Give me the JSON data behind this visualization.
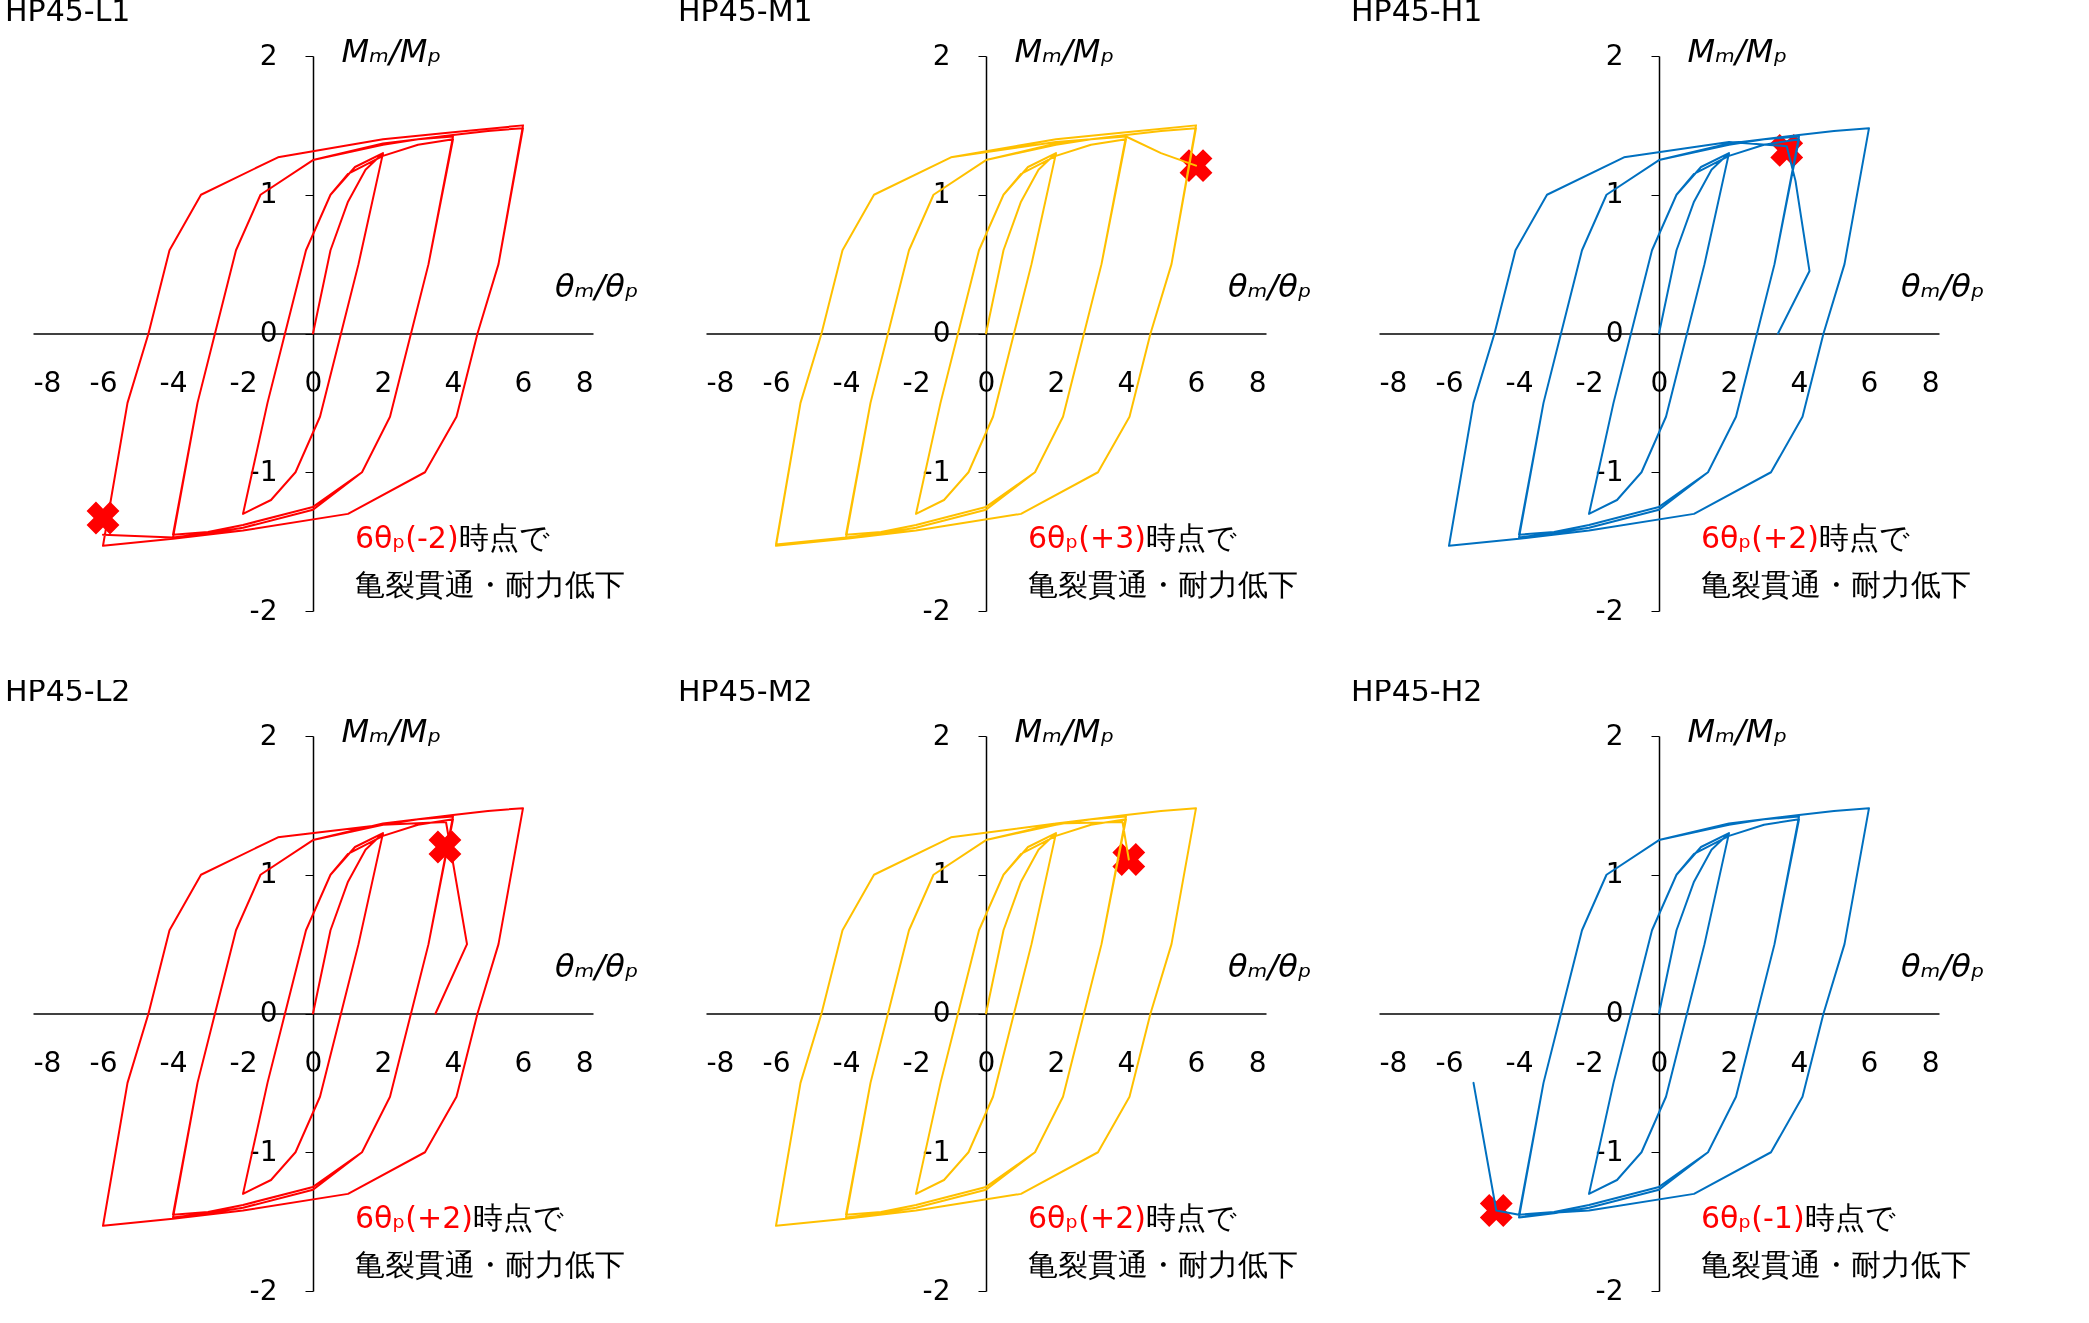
{
  "chart_data": [
    {
      "type": "line",
      "title": "HP45-L1",
      "xlabel": "θₘ/θₚ",
      "ylabel": "Mₘ/Mₚ",
      "xlim": [
        -8,
        8
      ],
      "ylim": [
        -2,
        2
      ],
      "xticks": [
        -8,
        -6,
        -4,
        -2,
        0,
        2,
        4,
        6,
        8
      ],
      "yticks": [
        -2,
        -1,
        0,
        1,
        2
      ],
      "annotations": [
        "6θₚ(-2)",
        "時点で",
        "亀裂貫通・耐力低下"
      ],
      "series": [
        {
          "color": "#ff0000",
          "x": [
            0,
            0.5,
            1,
            1.5,
            2,
            1.3,
            0.8,
            0.2,
            -0.5,
            -1.2,
            -2,
            -1.3,
            -0.8,
            -0.2,
            0.5,
            1.2,
            2,
            1.3,
            0.8,
            0.2,
            -0.5,
            -1.2,
            -2,
            -1.3,
            -0.8,
            -0.2,
            0.5,
            1,
            2,
            3,
            4,
            3.3,
            2.8,
            2.2,
            1.4,
            0,
            -2,
            -3,
            -4,
            -3.3,
            -2.8,
            -2.2,
            -1.5,
            0,
            2,
            3,
            4,
            3.3,
            2.8,
            2.2,
            1.4,
            0,
            -2,
            -3,
            -4,
            -3.3,
            -2.8,
            -2.2,
            -1.5,
            0,
            2,
            4,
            5,
            6,
            5.3,
            4.7,
            4.1,
            3.2,
            1,
            -2,
            -4,
            -6,
            -5.3,
            -4.7,
            -4.1,
            -3.2,
            -1,
            2,
            4,
            6,
            5.3,
            4.7,
            4.1,
            3.2,
            1,
            -2,
            -4,
            -6
          ],
          "values": [
            0,
            0.6,
            0.95,
            1.18,
            1.3,
            0.5,
            0,
            -0.6,
            -1,
            -1.2,
            -1.3,
            -0.5,
            0,
            0.6,
            1,
            1.2,
            1.3,
            0.5,
            0,
            -0.6,
            -1,
            -1.2,
            -1.3,
            -0.5,
            0,
            0.6,
            1,
            1.15,
            1.28,
            1.36,
            1.4,
            0.5,
            0,
            -0.6,
            -1,
            -1.25,
            -1.38,
            -1.43,
            -1.45,
            -0.5,
            0,
            0.6,
            1,
            1.25,
            1.36,
            1.4,
            1.42,
            0.5,
            0,
            -0.6,
            -1,
            -1.27,
            -1.4,
            -1.44,
            -1.47,
            -0.5,
            0,
            0.6,
            1,
            1.25,
            1.37,
            1.43,
            1.46,
            1.48,
            0.5,
            0,
            -0.6,
            -1,
            -1.3,
            -1.42,
            -1.48,
            -1.53,
            -0.5,
            0,
            0.6,
            1,
            1.27,
            1.4,
            1.45,
            1.5,
            0.5,
            0,
            -0.6,
            -1,
            -1.3,
            -1.42,
            -1.47,
            -1.45
          ]
        },
        {
          "type": "scatter",
          "marker": "cross",
          "color": "#ff0000",
          "x": [
            -6
          ],
          "values": [
            -1.33
          ]
        }
      ]
    },
    {
      "type": "line",
      "title": "HP45-M1",
      "xlabel": "θₘ/θₚ",
      "ylabel": "Mₘ/Mₚ",
      "xlim": [
        -8,
        8
      ],
      "ylim": [
        -2,
        2
      ],
      "xticks": [
        -8,
        -6,
        -4,
        -2,
        0,
        2,
        4,
        6,
        8
      ],
      "yticks": [
        -2,
        -1,
        0,
        1,
        2
      ],
      "annotations": [
        "6θₚ(+3)",
        "時点で",
        "亀裂貫通・耐力低下"
      ],
      "series": [
        {
          "color": "#ffc000",
          "x": [
            0,
            0.5,
            1,
            1.5,
            2,
            1.3,
            0.8,
            0.2,
            -0.5,
            -1.2,
            -2,
            -1.3,
            -0.8,
            -0.2,
            0.5,
            1.2,
            2,
            1.3,
            0.8,
            0.2,
            -0.5,
            -1.2,
            -2,
            -1.3,
            -0.8,
            -0.2,
            0.5,
            1,
            2,
            3,
            4,
            3.3,
            2.8,
            2.2,
            1.4,
            0,
            -2,
            -3,
            -4,
            -3.3,
            -2.8,
            -2.2,
            -1.5,
            0,
            2,
            3,
            4,
            3.3,
            2.8,
            2.2,
            1.4,
            0,
            -2,
            -3,
            -4,
            -3.3,
            -2.8,
            -2.2,
            -1.5,
            0,
            2,
            4,
            5,
            6,
            5.3,
            4.7,
            4.1,
            3.2,
            1,
            -2,
            -4,
            -6,
            -5.3,
            -4.7,
            -4.1,
            -3.2,
            -1,
            2,
            4,
            6,
            5.3,
            4.7,
            4.1,
            3.2,
            1,
            -2,
            -4,
            -6,
            -5.3,
            -4.7,
            -4.1,
            -3.2,
            -1,
            2,
            4,
            5,
            6
          ],
          "values": [
            0,
            0.6,
            0.95,
            1.18,
            1.3,
            0.5,
            0,
            -0.6,
            -1,
            -1.2,
            -1.3,
            -0.5,
            0,
            0.6,
            1,
            1.2,
            1.3,
            0.5,
            0,
            -0.6,
            -1,
            -1.2,
            -1.3,
            -0.5,
            0,
            0.6,
            1,
            1.15,
            1.28,
            1.36,
            1.4,
            0.5,
            0,
            -0.6,
            -1,
            -1.25,
            -1.38,
            -1.43,
            -1.45,
            -0.5,
            0,
            0.6,
            1,
            1.25,
            1.36,
            1.4,
            1.42,
            0.5,
            0,
            -0.6,
            -1,
            -1.27,
            -1.4,
            -1.44,
            -1.47,
            -0.5,
            0,
            0.6,
            1,
            1.25,
            1.37,
            1.43,
            1.46,
            1.48,
            0.5,
            0,
            -0.6,
            -1,
            -1.3,
            -1.42,
            -1.48,
            -1.53,
            -0.5,
            0,
            0.6,
            1,
            1.27,
            1.4,
            1.45,
            1.5,
            0.5,
            0,
            -0.6,
            -1,
            -1.3,
            -1.42,
            -1.47,
            -1.52,
            -0.5,
            0,
            0.6,
            1,
            1.27,
            1.38,
            1.42,
            1.3,
            1.21
          ]
        },
        {
          "type": "scatter",
          "marker": "cross",
          "color": "#ff0000",
          "x": [
            6
          ],
          "values": [
            1.21
          ]
        }
      ]
    },
    {
      "type": "line",
      "title": "HP45-H1",
      "xlabel": "θₘ/θₚ",
      "ylabel": "Mₘ/Mₚ",
      "xlim": [
        -8,
        8
      ],
      "ylim": [
        -2,
        2
      ],
      "xticks": [
        -8,
        -6,
        -4,
        -2,
        0,
        2,
        4,
        6,
        8
      ],
      "yticks": [
        -2,
        -1,
        0,
        1,
        2
      ],
      "annotations": [
        "6θₚ(+2)",
        "時点で",
        "亀裂貫通・耐力低下"
      ],
      "series": [
        {
          "color": "#0070c0",
          "x": [
            0,
            0.5,
            1,
            1.5,
            2,
            1.3,
            0.8,
            0.2,
            -0.5,
            -1.2,
            -2,
            -1.3,
            -0.8,
            -0.2,
            0.5,
            1.2,
            2,
            1.3,
            0.8,
            0.2,
            -0.5,
            -1.2,
            -2,
            -1.3,
            -0.8,
            -0.2,
            0.5,
            1,
            2,
            3,
            4,
            3.3,
            2.8,
            2.2,
            1.4,
            0,
            -2,
            -3,
            -4,
            -3.3,
            -2.8,
            -2.2,
            -1.5,
            0,
            2,
            3,
            4,
            3.3,
            2.8,
            2.2,
            1.4,
            0,
            -2,
            -3,
            -4,
            -3.3,
            -2.8,
            -2.2,
            -1.5,
            0,
            2,
            4,
            5,
            6,
            5.3,
            4.7,
            4.1,
            3.2,
            1,
            -2,
            -4,
            -6,
            -5.3,
            -4.7,
            -4.1,
            -3.2,
            -1,
            2,
            3.65,
            3.9,
            4.3,
            3.4
          ],
          "values": [
            0,
            0.6,
            0.95,
            1.18,
            1.3,
            0.5,
            0,
            -0.6,
            -1,
            -1.2,
            -1.3,
            -0.5,
            0,
            0.6,
            1,
            1.2,
            1.3,
            0.5,
            0,
            -0.6,
            -1,
            -1.2,
            -1.3,
            -0.5,
            0,
            0.6,
            1,
            1.15,
            1.28,
            1.36,
            1.4,
            0.5,
            0,
            -0.6,
            -1,
            -1.25,
            -1.38,
            -1.43,
            -1.45,
            -0.5,
            0,
            0.6,
            1,
            1.25,
            1.36,
            1.4,
            1.42,
            0.5,
            0,
            -0.6,
            -1,
            -1.27,
            -1.4,
            -1.44,
            -1.47,
            -0.5,
            0,
            0.6,
            1,
            1.25,
            1.37,
            1.43,
            1.46,
            1.48,
            0.5,
            0,
            -0.6,
            -1,
            -1.3,
            -1.42,
            -1.48,
            -1.53,
            -0.5,
            0,
            0.6,
            1,
            1.27,
            1.38,
            1.35,
            1.1,
            0.45,
            0
          ]
        },
        {
          "type": "scatter",
          "marker": "cross",
          "color": "#ff0000",
          "x": [
            3.65
          ],
          "values": [
            1.32
          ]
        }
      ]
    },
    {
      "type": "line",
      "title": "HP45-L2",
      "xlabel": "θₘ/θₚ",
      "ylabel": "Mₘ/Mₚ",
      "xlim": [
        -8,
        8
      ],
      "ylim": [
        -2,
        2
      ],
      "xticks": [
        -8,
        -6,
        -4,
        -2,
        0,
        2,
        4,
        6,
        8
      ],
      "yticks": [
        -2,
        -1,
        0,
        1,
        2
      ],
      "annotations": [
        "6θₚ(+2)",
        "時点で",
        "亀裂貫通・耐力低下"
      ],
      "series": [
        {
          "color": "#ff0000",
          "x": [
            0,
            0.5,
            1,
            1.5,
            2,
            1.3,
            0.8,
            0.2,
            -0.5,
            -1.2,
            -2,
            -1.3,
            -0.8,
            -0.2,
            0.5,
            1.2,
            2,
            1.3,
            0.8,
            0.2,
            -0.5,
            -1.2,
            -2,
            -1.3,
            -0.8,
            -0.2,
            0.5,
            1,
            2,
            3,
            4,
            3.3,
            2.8,
            2.2,
            1.4,
            0,
            -2,
            -3,
            -4,
            -3.3,
            -2.8,
            -2.2,
            -1.5,
            0,
            2,
            3,
            4,
            3.3,
            2.8,
            2.2,
            1.4,
            0,
            -2,
            -3,
            -4,
            -3.3,
            -2.8,
            -2.2,
            -1.5,
            0,
            2,
            4,
            5,
            6,
            5.3,
            4.7,
            4.1,
            3.2,
            1,
            -2,
            -4,
            -6,
            -5.3,
            -4.7,
            -4.1,
            -3.2,
            -1,
            2,
            3.8,
            4.4,
            3.5
          ],
          "values": [
            0,
            0.6,
            0.95,
            1.18,
            1.3,
            0.5,
            0,
            -0.6,
            -1,
            -1.2,
            -1.3,
            -0.5,
            0,
            0.6,
            1,
            1.2,
            1.3,
            0.5,
            0,
            -0.6,
            -1,
            -1.2,
            -1.3,
            -0.5,
            0,
            0.6,
            1,
            1.15,
            1.28,
            1.36,
            1.4,
            0.5,
            0,
            -0.6,
            -1,
            -1.25,
            -1.38,
            -1.43,
            -1.45,
            -0.5,
            0,
            0.6,
            1,
            1.25,
            1.36,
            1.4,
            1.42,
            0.5,
            0,
            -0.6,
            -1,
            -1.27,
            -1.4,
            -1.44,
            -1.47,
            -0.5,
            0,
            0.6,
            1,
            1.25,
            1.37,
            1.43,
            1.46,
            1.48,
            0.5,
            0,
            -0.6,
            -1,
            -1.3,
            -1.42,
            -1.48,
            -1.53,
            -0.5,
            0,
            0.6,
            1,
            1.27,
            1.36,
            1.38,
            0.5,
            0
          ]
        },
        {
          "type": "scatter",
          "marker": "cross",
          "color": "#ff0000",
          "x": [
            3.77
          ],
          "values": [
            1.2
          ]
        }
      ]
    },
    {
      "type": "line",
      "title": "HP45-M2",
      "xlabel": "θₘ/θₚ",
      "ylabel": "Mₘ/Mₚ",
      "xlim": [
        -8,
        8
      ],
      "ylim": [
        -2,
        2
      ],
      "xticks": [
        -8,
        -6,
        -4,
        -2,
        0,
        2,
        4,
        6,
        8
      ],
      "yticks": [
        -2,
        -1,
        0,
        1,
        2
      ],
      "annotations": [
        "6θₚ(+2)",
        "時点で",
        "亀裂貫通・耐力低下"
      ],
      "series": [
        {
          "color": "#ffc000",
          "x": [
            0,
            0.5,
            1,
            1.5,
            2,
            1.3,
            0.8,
            0.2,
            -0.5,
            -1.2,
            -2,
            -1.3,
            -0.8,
            -0.2,
            0.5,
            1.2,
            2,
            1.3,
            0.8,
            0.2,
            -0.5,
            -1.2,
            -2,
            -1.3,
            -0.8,
            -0.2,
            0.5,
            1,
            2,
            3,
            4,
            3.3,
            2.8,
            2.2,
            1.4,
            0,
            -2,
            -3,
            -4,
            -3.3,
            -2.8,
            -2.2,
            -1.5,
            0,
            2,
            3,
            4,
            3.3,
            2.8,
            2.2,
            1.4,
            0,
            -2,
            -3,
            -4,
            -3.3,
            -2.8,
            -2.2,
            -1.5,
            0,
            2,
            4,
            5,
            6,
            5.3,
            4.7,
            4.1,
            3.2,
            1,
            -2,
            -4,
            -6,
            -5.3,
            -4.7,
            -4.1,
            -3.2,
            -1,
            2,
            3.9,
            4.08
          ],
          "values": [
            0,
            0.6,
            0.95,
            1.18,
            1.3,
            0.5,
            0,
            -0.6,
            -1,
            -1.2,
            -1.3,
            -0.5,
            0,
            0.6,
            1,
            1.2,
            1.3,
            0.5,
            0,
            -0.6,
            -1,
            -1.2,
            -1.3,
            -0.5,
            0,
            0.6,
            1,
            1.15,
            1.28,
            1.36,
            1.4,
            0.5,
            0,
            -0.6,
            -1,
            -1.25,
            -1.38,
            -1.43,
            -1.45,
            -0.5,
            0,
            0.6,
            1,
            1.25,
            1.36,
            1.4,
            1.42,
            0.5,
            0,
            -0.6,
            -1,
            -1.27,
            -1.4,
            -1.44,
            -1.47,
            -0.5,
            0,
            0.6,
            1,
            1.25,
            1.37,
            1.43,
            1.46,
            1.48,
            0.5,
            0,
            -0.6,
            -1,
            -1.3,
            -1.42,
            -1.48,
            -1.53,
            -0.5,
            0,
            0.6,
            1,
            1.27,
            1.37,
            1.38,
            1.11
          ]
        },
        {
          "type": "scatter",
          "marker": "cross",
          "color": "#ff0000",
          "x": [
            4.08
          ],
          "values": [
            1.11
          ]
        }
      ]
    },
    {
      "type": "line",
      "title": "HP45-H2",
      "xlabel": "θₘ/θₚ",
      "ylabel": "Mₘ/Mₚ",
      "xlim": [
        -8,
        8
      ],
      "ylim": [
        -2,
        2
      ],
      "xticks": [
        -8,
        -6,
        -4,
        -2,
        0,
        2,
        4,
        6,
        8
      ],
      "yticks": [
        -2,
        -1,
        0,
        1,
        2
      ],
      "annotations": [
        "6θₚ(-1)",
        "時点で",
        "亀裂貫通・耐力低下"
      ],
      "series": [
        {
          "color": "#0070c0",
          "x": [
            0,
            0.5,
            1,
            1.5,
            2,
            1.3,
            0.8,
            0.2,
            -0.5,
            -1.2,
            -2,
            -1.3,
            -0.8,
            -0.2,
            0.5,
            1.2,
            2,
            1.3,
            0.8,
            0.2,
            -0.5,
            -1.2,
            -2,
            -1.3,
            -0.8,
            -0.2,
            0.5,
            1,
            2,
            3,
            4,
            3.3,
            2.8,
            2.2,
            1.4,
            0,
            -2,
            -3,
            -4,
            -3.3,
            -2.8,
            -2.2,
            -1.5,
            0,
            2,
            3,
            4,
            3.3,
            2.8,
            2.2,
            1.4,
            0,
            -2,
            -3,
            -4,
            -3.3,
            -2.8,
            -2.2,
            -1.5,
            0,
            2,
            4,
            5,
            6,
            5.3,
            4.7,
            4.1,
            3.2,
            1,
            -2,
            -4,
            -4.65,
            -5.3
          ],
          "values": [
            0,
            0.6,
            0.95,
            1.18,
            1.3,
            0.5,
            0,
            -0.6,
            -1,
            -1.2,
            -1.3,
            -0.5,
            0,
            0.6,
            1,
            1.2,
            1.3,
            0.5,
            0,
            -0.6,
            -1,
            -1.2,
            -1.3,
            -0.5,
            0,
            0.6,
            1,
            1.15,
            1.28,
            1.36,
            1.4,
            0.5,
            0,
            -0.6,
            -1,
            -1.25,
            -1.38,
            -1.43,
            -1.45,
            -0.5,
            0,
            0.6,
            1,
            1.25,
            1.36,
            1.4,
            1.42,
            0.5,
            0,
            -0.6,
            -1,
            -1.27,
            -1.4,
            -1.44,
            -1.47,
            -0.5,
            0,
            0.6,
            1,
            1.25,
            1.37,
            1.43,
            1.46,
            1.48,
            0.5,
            0,
            -0.6,
            -1,
            -1.3,
            -1.42,
            -1.45,
            -1.42,
            -0.5
          ]
        },
        {
          "type": "scatter",
          "marker": "cross",
          "color": "#ff0000",
          "x": [
            -4.65
          ],
          "values": [
            -1.42
          ]
        }
      ]
    }
  ]
}
